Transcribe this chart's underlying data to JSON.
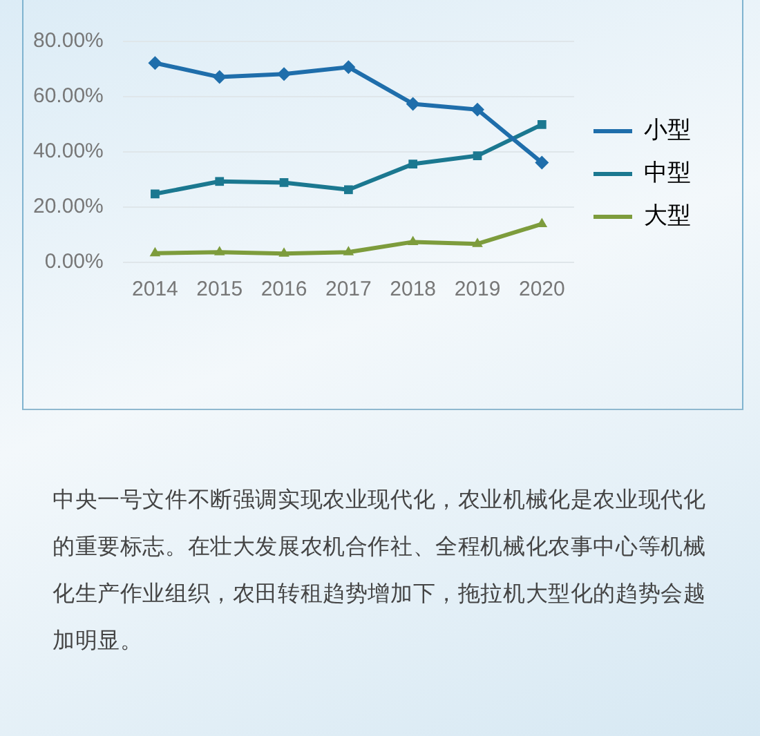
{
  "chart_data": {
    "type": "line",
    "categories": [
      "2014",
      "2015",
      "2016",
      "2017",
      "2018",
      "2019",
      "2020"
    ],
    "series": [
      {
        "name": "小型",
        "color": "#1f6eab",
        "marker": "diamond",
        "values": [
          72.2,
          67.1,
          68.2,
          70.7,
          57.4,
          55.3,
          36.1
        ]
      },
      {
        "name": "中型",
        "color": "#1b7890",
        "marker": "square",
        "values": [
          24.8,
          29.3,
          28.9,
          26.3,
          35.6,
          38.6,
          49.9
        ]
      },
      {
        "name": "大型",
        "color": "#7d9c3c",
        "marker": "triangle",
        "values": [
          3.3,
          3.7,
          3.2,
          3.7,
          7.4,
          6.7,
          13.9
        ]
      }
    ],
    "ylim": [
      0,
      80
    ],
    "yticks": [
      {
        "value": 0,
        "label": "0.00%"
      },
      {
        "value": 20,
        "label": "20.00%"
      },
      {
        "value": 40,
        "label": "40.00%"
      },
      {
        "value": 60,
        "label": "60.00%"
      },
      {
        "value": 80,
        "label": "80.00%"
      }
    ],
    "grid": "y",
    "legend": "right",
    "line_style": "solid",
    "annotations": [
      "中央一号文件不断强调实现农业现代化，农业机械化是农业现代化的重要标志。在壮大发展农机合作社、全程机械化农事中心等机械化生产作业组织，农田转租趋势增加下，拖拉机大型化的趋势会越加明显。"
    ]
  }
}
